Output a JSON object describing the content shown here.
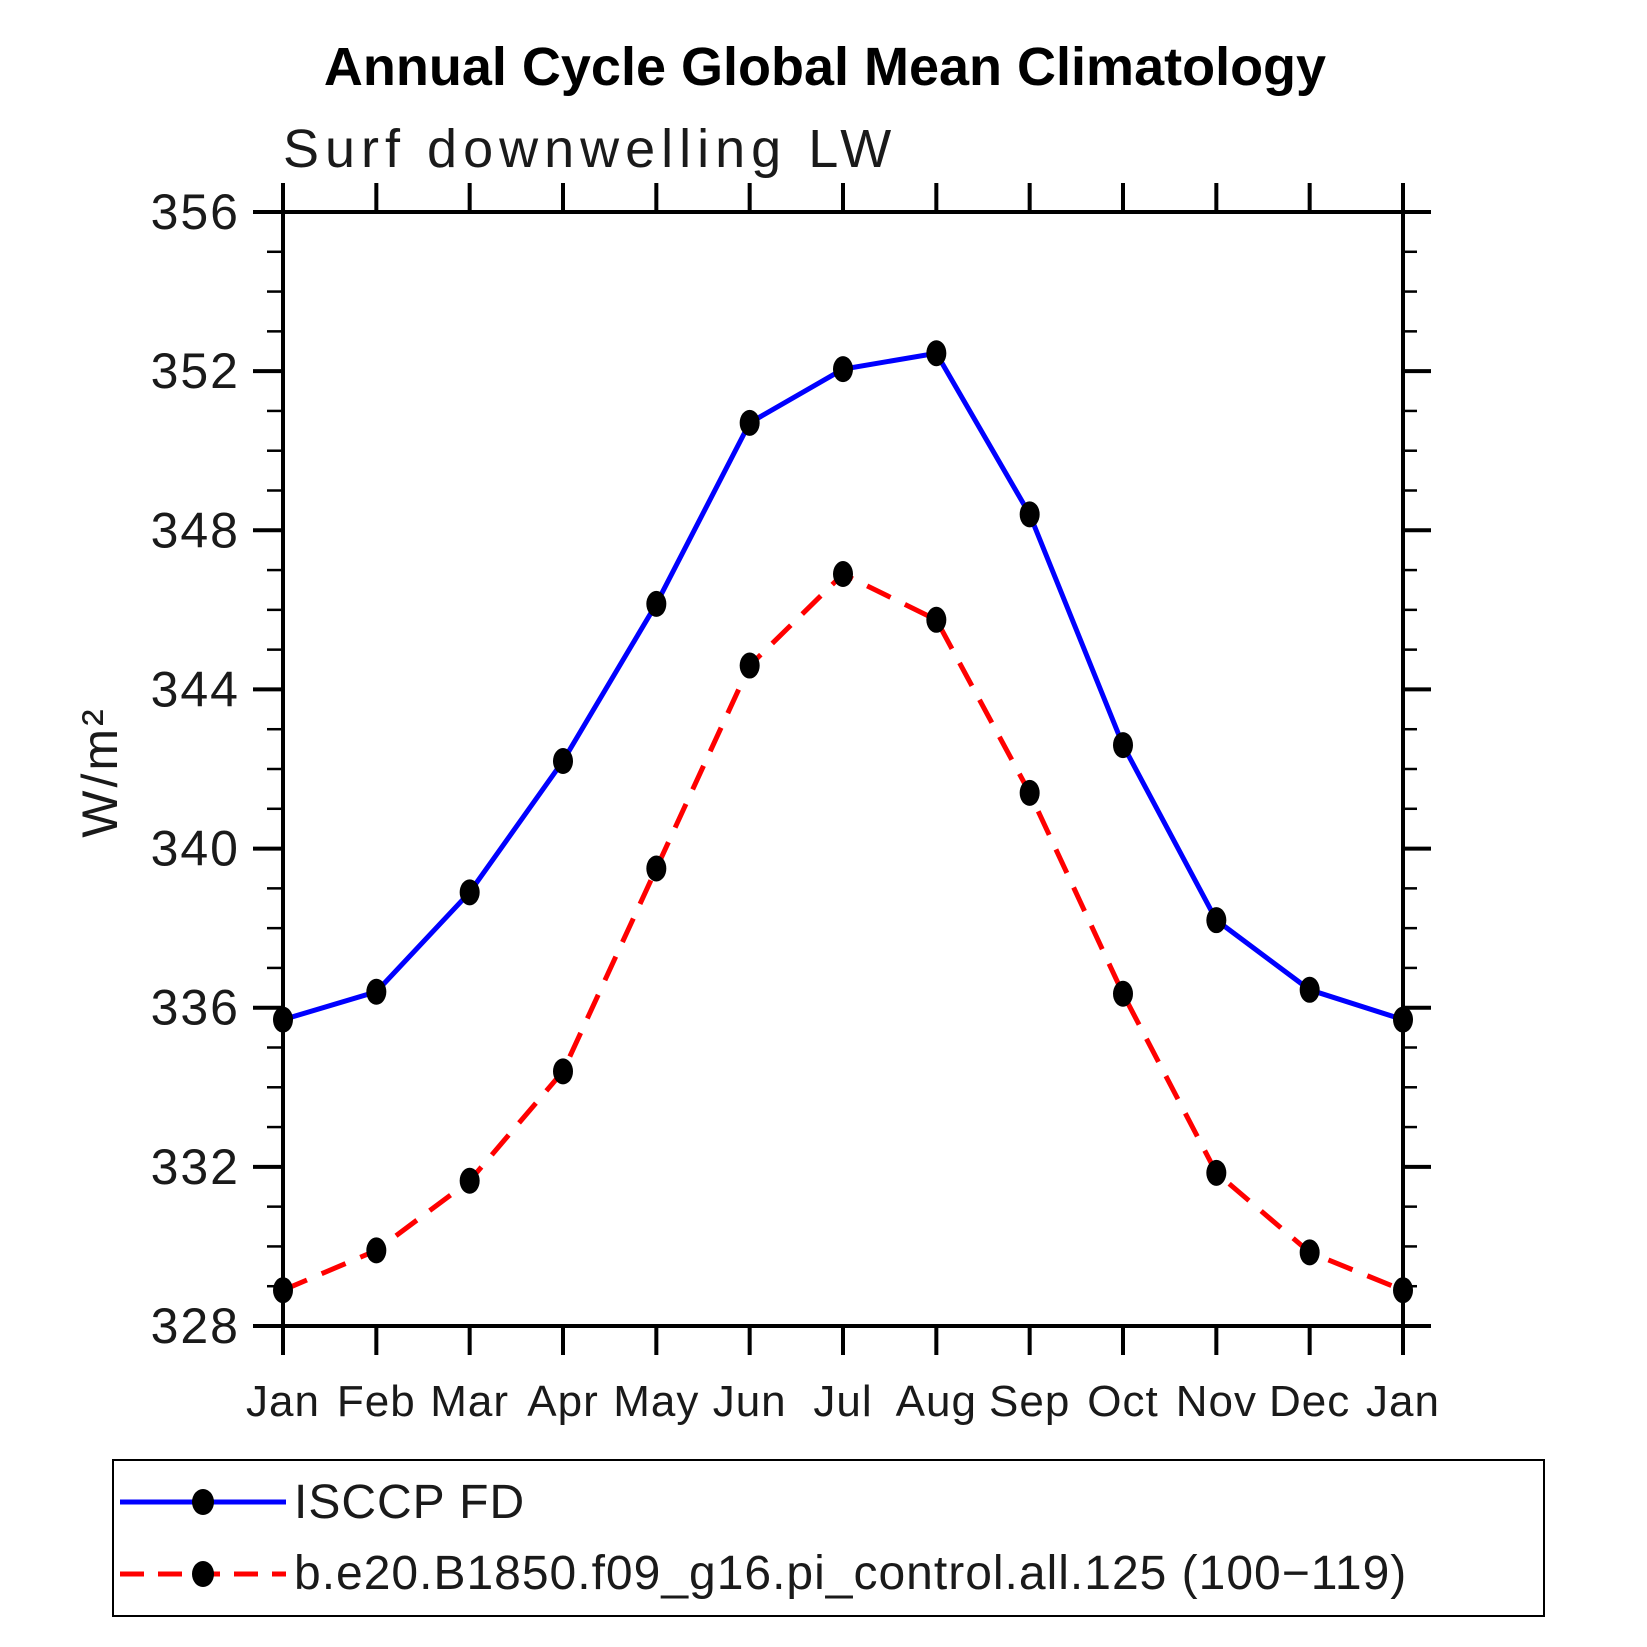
{
  "chart_data": {
    "type": "line",
    "title": "Annual Cycle Global Mean Climatology",
    "subtitle": "Surf downwelling LW",
    "xlabel": "",
    "ylabel": "W/m²",
    "categories": [
      "Jan",
      "Feb",
      "Mar",
      "Apr",
      "May",
      "Jun",
      "Jul",
      "Aug",
      "Sep",
      "Oct",
      "Nov",
      "Dec",
      "Jan"
    ],
    "series": [
      {
        "name": "ISCCP FD",
        "color": "#0000ff",
        "line_style": "solid",
        "marker": "filled-black-dot",
        "values": [
          335.7,
          336.4,
          338.9,
          342.2,
          346.15,
          350.7,
          352.05,
          352.45,
          348.4,
          342.6,
          338.2,
          336.45,
          335.7
        ]
      },
      {
        "name": "b.e20.B1850.f09_g16.pi_control.all.125 (100−119)",
        "color": "#ff0000",
        "line_style": "dashed",
        "marker": "filled-black-dot",
        "values": [
          328.9,
          329.9,
          331.65,
          334.4,
          339.5,
          344.6,
          346.9,
          345.75,
          341.4,
          336.35,
          331.85,
          329.85,
          328.9
        ]
      }
    ],
    "marker_color": "#000000",
    "axis_color": "#000000",
    "ylim": [
      328,
      356
    ],
    "yticks_major": [
      328,
      332,
      336,
      340,
      344,
      348,
      352,
      356
    ],
    "ytick_minor_step": 1,
    "grid": false,
    "legend_position": "bottom-box"
  }
}
